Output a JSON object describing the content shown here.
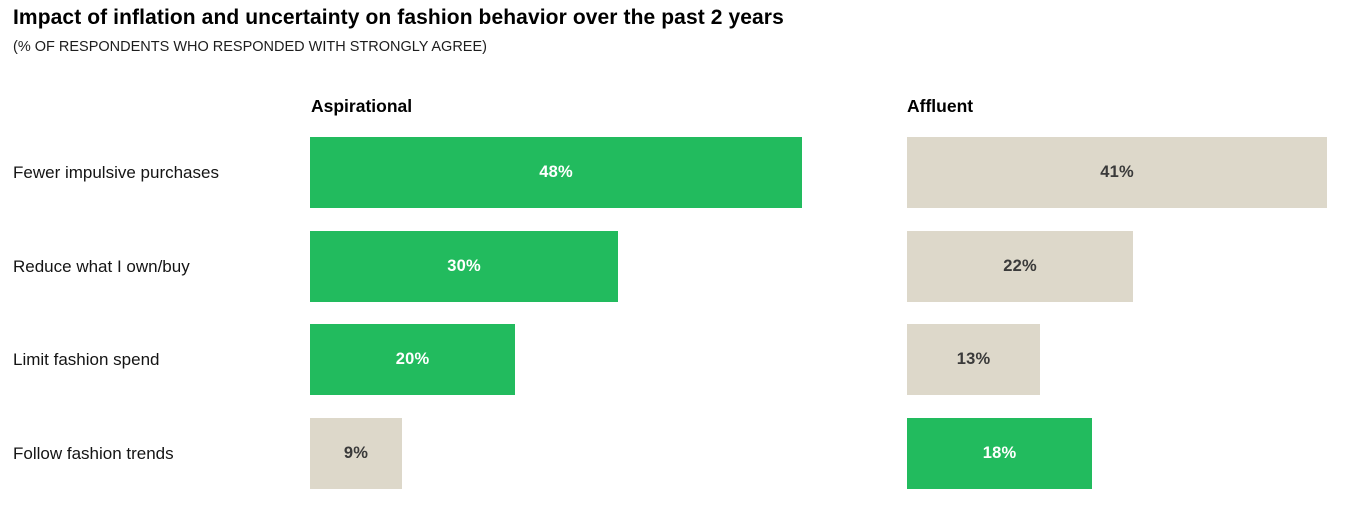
{
  "page": {
    "title": "Impact of inflation and uncertainty on fashion behavior over the past 2 years",
    "subtitle": "(% OF RESPONDENTS WHO RESPONDED WITH STRONGLY AGREE)"
  },
  "colors": {
    "highlight_green": "#22bb5e",
    "neutral_beige": "#ddd8ca",
    "value_text_on_green": "#ffffff",
    "value_text_on_beige": "#3a3a3a",
    "title_text": "#000000"
  },
  "chart_data": {
    "type": "bar",
    "orientation": "horizontal",
    "unit": "%",
    "value_range": [
      0,
      48
    ],
    "grid": false,
    "title": "Impact of inflation and uncertainty on fashion behavior over the past 2 years",
    "subtitle": "(% OF RESPONDENTS WHO RESPONDED WITH STRONGLY AGREE)",
    "categories": [
      "Fewer impulsive purchases",
      "Reduce what I own/buy",
      "Limit fashion spend",
      "Follow fashion trends"
    ],
    "series": [
      {
        "name": "Aspirational",
        "bars": [
          {
            "value": 48,
            "label": "48%",
            "style": "green"
          },
          {
            "value": 30,
            "label": "30%",
            "style": "green"
          },
          {
            "value": 20,
            "label": "20%",
            "style": "green"
          },
          {
            "value": 9,
            "label": "9%",
            "style": "beige"
          }
        ]
      },
      {
        "name": "Affluent",
        "bars": [
          {
            "value": 41,
            "label": "41%",
            "style": "beige"
          },
          {
            "value": 22,
            "label": "22%",
            "style": "beige"
          },
          {
            "value": 13,
            "label": "13%",
            "style": "beige"
          },
          {
            "value": 18,
            "label": "18%",
            "style": "green"
          }
        ]
      }
    ]
  }
}
